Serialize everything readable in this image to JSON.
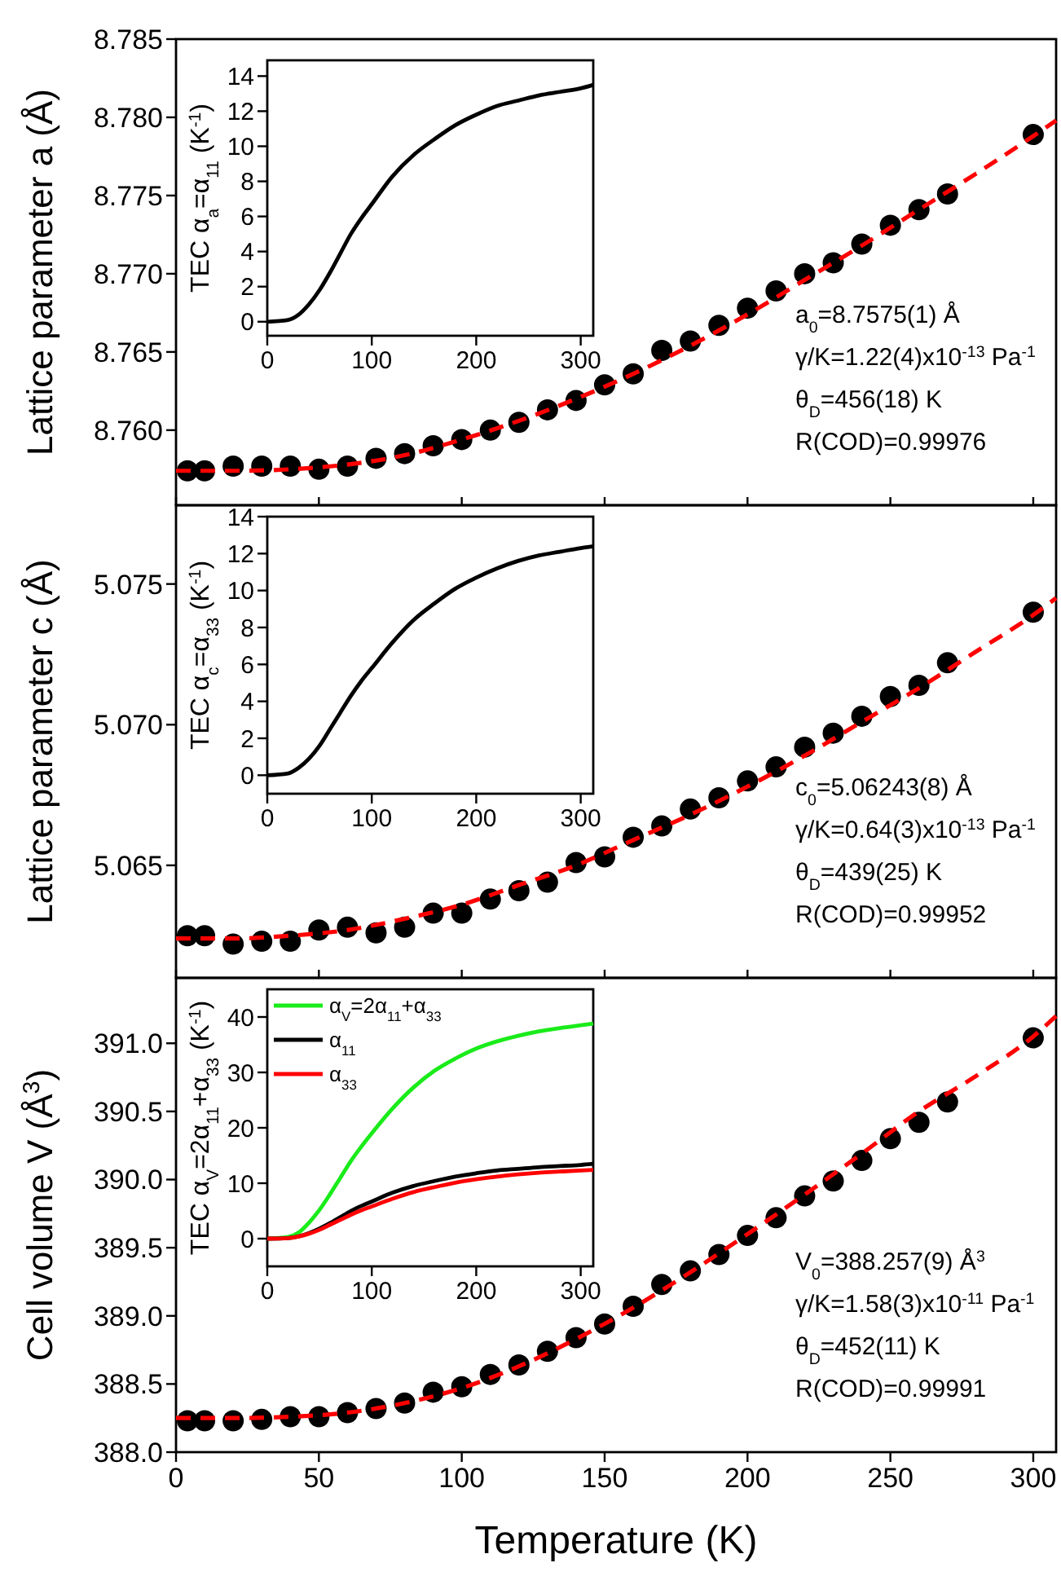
{
  "chart_data": [
    {
      "type": "scatter",
      "ylabel": "Lattice parameter a (Å)",
      "x": [
        4,
        10,
        20,
        30,
        40,
        50,
        60,
        70,
        80,
        90,
        100,
        110,
        120,
        130,
        140,
        150,
        160,
        170,
        180,
        190,
        200,
        210,
        220,
        230,
        240,
        250,
        260,
        270,
        300
      ],
      "xlim": [
        0,
        308
      ],
      "xticks": [
        0,
        50,
        100,
        150,
        200,
        250,
        300
      ],
      "ylim": [
        8.7552,
        8.785
      ],
      "yticks": [
        {
          "value": 8.76,
          "label": "8.760"
        },
        8.765,
        {
          "value": 8.77,
          "label": "8.770"
        },
        8.775,
        {
          "value": 8.78,
          "label": "8.780"
        },
        8.785
      ],
      "tick_labels": "y",
      "annotations": [
        "a$_{0}$=8.7575(1) Å",
        "γ/K=1.22(4)x10$^{-13}$ Pa$^{-1}$",
        "θ$_{D}$=456(18) K",
        "R(COD)=0.99976"
      ],
      "series": [
        {
          "color": "#000000",
          "marker": "circle",
          "values": [
            8.7574,
            8.7574,
            8.7577,
            8.7577,
            8.7577,
            8.7575,
            8.7577,
            8.7582,
            8.7585,
            8.759,
            8.7594,
            8.76,
            8.7605,
            8.7613,
            8.7619,
            8.7629,
            8.7636,
            8.7651,
            8.7657,
            8.7667,
            8.7678,
            8.7689,
            8.77,
            8.7707,
            8.7719,
            8.7731,
            8.7741,
            8.7751,
            8.7789
          ]
        },
        {
          "type": "line",
          "color": "#ff0000",
          "line_style": "dashed",
          "x": [
            0,
            20,
            40,
            60,
            80,
            100,
            120,
            140,
            160,
            180,
            200,
            220,
            240,
            260,
            280,
            300,
            308
          ],
          "values": [
            8.7574,
            8.7574,
            8.7575,
            8.7578,
            8.7584,
            8.7594,
            8.7606,
            8.762,
            8.7636,
            8.7654,
            8.7674,
            8.7696,
            8.7718,
            8.7741,
            8.7764,
            8.7788,
            8.7798
          ]
        }
      ]
    },
    {
      "type": "line",
      "ylabel": "TEC α$_{a}$=α$_{11}$ (K$^{-1}$)",
      "x": [
        0,
        20,
        30,
        40,
        50,
        60,
        70,
        80,
        90,
        100,
        120,
        140,
        160,
        180,
        200,
        220,
        240,
        260,
        280,
        300,
        312
      ],
      "xlim": [
        0,
        312
      ],
      "xticks": [
        0,
        100,
        200,
        300
      ],
      "ylim": [
        -0.8,
        14.9
      ],
      "yticks": [
        0,
        2,
        4,
        6,
        8,
        10,
        12,
        14
      ],
      "series": [
        {
          "color": "#000000",
          "values": [
            0,
            0.1,
            0.4,
            1,
            1.8,
            2.8,
            3.9,
            5,
            5.9,
            6.7,
            8.3,
            9.5,
            10.4,
            11.2,
            11.8,
            12.3,
            12.6,
            12.9,
            13.1,
            13.3,
            13.5
          ]
        }
      ]
    },
    {
      "type": "scatter",
      "ylabel": "Lattice parameter c (Å)",
      "x": [
        4,
        10,
        20,
        30,
        40,
        50,
        60,
        70,
        80,
        90,
        100,
        110,
        120,
        130,
        140,
        150,
        160,
        170,
        180,
        190,
        200,
        210,
        220,
        230,
        240,
        250,
        260,
        270,
        300
      ],
      "xlim": [
        0,
        308
      ],
      "xticks": [
        0,
        50,
        100,
        150,
        200,
        250,
        300
      ],
      "ylim": [
        5.061,
        5.0778
      ],
      "yticks": [
        5.065,
        {
          "value": 5.07,
          "label": "5.070"
        },
        5.075
      ],
      "tick_labels": "y",
      "annotations": [
        "c$_{0}$=5.06243(8) Å",
        "γ/K=0.64(3)x10$^{-13}$ Pa$^{-1}$",
        "θ$_{D}$=439(25) K",
        "R(COD)=0.99952"
      ],
      "series": [
        {
          "color": "#000000",
          "marker": "circle",
          "values": [
            5.0625,
            5.0625,
            5.0622,
            5.0623,
            5.0623,
            5.0627,
            5.0628,
            5.0626,
            5.0628,
            5.0633,
            5.0633,
            5.0638,
            5.0641,
            5.0644,
            5.0651,
            5.0653,
            5.066,
            5.0664,
            5.067,
            5.0674,
            5.068,
            5.0685,
            5.0692,
            5.0697,
            5.0703,
            5.071,
            5.0714,
            5.0722,
            5.074
          ]
        },
        {
          "type": "line",
          "color": "#ff0000",
          "line_style": "dashed",
          "x": [
            0,
            20,
            40,
            60,
            80,
            100,
            120,
            140,
            160,
            180,
            200,
            220,
            240,
            260,
            280,
            300,
            308
          ],
          "values": [
            5.0624,
            5.0624,
            5.0625,
            5.0627,
            5.0631,
            5.0636,
            5.0643,
            5.065,
            5.0659,
            5.0668,
            5.0678,
            5.0689,
            5.0701,
            5.0713,
            5.0726,
            5.0739,
            5.0745
          ]
        }
      ]
    },
    {
      "type": "line",
      "ylabel": "TEC α$_{c}$=α$_{33}$ (K$^{-1}$)",
      "x": [
        0,
        20,
        30,
        40,
        50,
        60,
        70,
        80,
        90,
        100,
        120,
        140,
        160,
        180,
        200,
        220,
        240,
        260,
        280,
        300,
        312
      ],
      "xlim": [
        0,
        312
      ],
      "xticks": [
        0,
        100,
        200,
        300
      ],
      "ylim": [
        -1,
        14
      ],
      "yticks": [
        0,
        2,
        4,
        6,
        8,
        10,
        12,
        14
      ],
      "series": [
        {
          "color": "#000000",
          "values": [
            0,
            0.1,
            0.4,
            0.9,
            1.6,
            2.5,
            3.4,
            4.3,
            5.1,
            5.8,
            7.2,
            8.4,
            9.3,
            10.1,
            10.7,
            11.2,
            11.6,
            11.9,
            12.1,
            12.3,
            12.4
          ]
        }
      ]
    },
    {
      "type": "scatter",
      "xlabel": "Temperature (K)",
      "ylabel": "Cell volume V (Å$^{3}$)",
      "x": [
        4,
        10,
        20,
        30,
        40,
        50,
        60,
        70,
        80,
        90,
        100,
        110,
        120,
        130,
        140,
        150,
        160,
        170,
        180,
        190,
        200,
        210,
        220,
        230,
        240,
        250,
        260,
        270,
        300
      ],
      "xlim": [
        0,
        308
      ],
      "xticks": [
        0,
        50,
        100,
        150,
        200,
        250,
        300
      ],
      "ylim": [
        388,
        391.48
      ],
      "yticks": [
        {
          "value": 388,
          "label": "388.0"
        },
        388.5,
        {
          "value": 389,
          "label": "389.0"
        },
        389.5,
        {
          "value": 390,
          "label": "390.0"
        },
        390.5,
        {
          "value": 391,
          "label": "391.0"
        }
      ],
      "annotations": [
        "V$_{0}$=388.257(9) Å$^{3}$",
        "γ/K=1.58(3)x10$^{-11}$ Pa$^{-1}$",
        "θ$_{D}$=452(11) K",
        "R(COD)=0.99991"
      ],
      "series": [
        {
          "color": "#000000",
          "marker": "circle",
          "values": [
            388.23,
            388.23,
            388.23,
            388.24,
            388.26,
            388.26,
            388.29,
            388.32,
            388.36,
            388.44,
            388.48,
            388.57,
            388.64,
            388.74,
            388.84,
            388.94,
            389.07,
            389.23,
            389.33,
            389.45,
            389.59,
            389.72,
            389.88,
            389.99,
            390.14,
            390.3,
            390.42,
            390.57,
            391.04
          ]
        },
        {
          "type": "line",
          "color": "#ff0000",
          "line_style": "dashed",
          "x": [
            0,
            20,
            40,
            60,
            80,
            100,
            120,
            140,
            160,
            180,
            200,
            220,
            240,
            260,
            280,
            300,
            308
          ],
          "values": [
            388.25,
            388.25,
            388.26,
            388.29,
            388.36,
            388.47,
            388.63,
            388.83,
            389.06,
            389.32,
            389.6,
            389.89,
            390.19,
            390.5,
            390.76,
            391.05,
            391.2
          ]
        }
      ]
    },
    {
      "type": "line",
      "ylabel": "TEC α$_{V}$=2α$_{11}$+α$_{33}$ (K$^{-1}$)",
      "x": [
        0,
        20,
        30,
        40,
        50,
        60,
        70,
        80,
        90,
        100,
        120,
        140,
        160,
        180,
        200,
        220,
        240,
        260,
        280,
        300,
        312
      ],
      "xlim": [
        0,
        312
      ],
      "xticks": [
        0,
        100,
        200,
        300
      ],
      "ylim": [
        -5,
        45
      ],
      "yticks": [
        0,
        10,
        20,
        30,
        40
      ],
      "legend": "top left",
      "series": [
        {
          "name": "α$_{V}$=2α$_{11}$+α$_{33}$",
          "color": "#1aeb1a",
          "values": [
            0,
            0.3,
            1.1,
            2.9,
            5.2,
            8,
            11,
            14,
            16.6,
            19,
            23.5,
            27.3,
            30.3,
            32.5,
            34.3,
            35.6,
            36.6,
            37.4,
            38,
            38.5,
            38.8
          ]
        },
        {
          "name": "α$_{11}$",
          "color": "#000000",
          "values": [
            0,
            0.1,
            0.4,
            1,
            1.8,
            2.8,
            3.9,
            5,
            5.9,
            6.7,
            8.3,
            9.5,
            10.4,
            11.2,
            11.8,
            12.3,
            12.6,
            12.9,
            13.1,
            13.3,
            13.5
          ]
        },
        {
          "name": "α$_{33}$",
          "color": "#ff0000",
          "values": [
            0,
            0.1,
            0.4,
            0.9,
            1.6,
            2.5,
            3.4,
            4.3,
            5.1,
            5.8,
            7.2,
            8.4,
            9.3,
            10.1,
            10.7,
            11.2,
            11.6,
            11.9,
            12.1,
            12.3,
            12.4
          ]
        }
      ]
    }
  ]
}
